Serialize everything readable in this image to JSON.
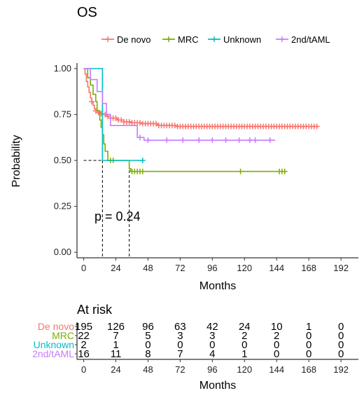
{
  "chart_data": [
    {
      "type": "line",
      "title": "OS",
      "xlabel": "Months",
      "ylabel": "Probability",
      "xlim": [
        -5,
        205
      ],
      "ylim": [
        -0.03,
        1.03
      ],
      "x_ticks": [
        0,
        24,
        48,
        72,
        96,
        120,
        144,
        168,
        192
      ],
      "y_ticks": [
        0.0,
        0.25,
        0.5,
        0.75,
        1.0
      ],
      "y_tick_labels": [
        "0.00",
        "0.25",
        "0.50",
        "0.75",
        "1.00"
      ],
      "legend_position": "top",
      "annotation": "p = 0.24",
      "median_lines": [
        {
          "x": 14,
          "y": 0.5
        },
        {
          "x": 34,
          "y": 0.5
        }
      ],
      "series": [
        {
          "name": "De novo",
          "color": "#F8766D",
          "steps": [
            [
              0,
              1.0
            ],
            [
              1,
              0.97
            ],
            [
              2,
              0.93
            ],
            [
              3,
              0.9
            ],
            [
              4,
              0.87
            ],
            [
              5,
              0.84
            ],
            [
              6,
              0.82
            ],
            [
              7,
              0.8
            ],
            [
              8,
              0.78
            ],
            [
              9,
              0.77
            ],
            [
              10,
              0.76
            ],
            [
              12,
              0.755
            ],
            [
              14,
              0.75
            ],
            [
              17,
              0.74
            ],
            [
              20,
              0.73
            ],
            [
              25,
              0.72
            ],
            [
              30,
              0.71
            ],
            [
              36,
              0.705
            ],
            [
              44,
              0.7
            ],
            [
              55,
              0.69
            ],
            [
              70,
              0.685
            ],
            [
              175,
              0.685
            ]
          ],
          "censor_x": [
            6,
            9,
            11,
            13,
            16,
            18,
            20,
            22,
            24,
            26,
            28,
            30,
            32,
            34,
            36,
            38,
            40,
            42,
            44,
            46,
            48,
            50,
            52,
            54,
            56,
            58,
            60,
            62,
            64,
            66,
            68,
            70,
            72,
            74,
            76,
            78,
            80,
            82,
            84,
            86,
            88,
            90,
            92,
            94,
            96,
            98,
            100,
            102,
            104,
            106,
            108,
            110,
            112,
            114,
            116,
            118,
            120,
            122,
            124,
            126,
            128,
            130,
            132,
            134,
            136,
            138,
            140,
            142,
            144,
            146,
            148,
            150,
            152,
            154,
            156,
            158,
            160,
            162,
            164,
            166,
            168,
            170,
            172,
            174
          ]
        },
        {
          "name": "MRC",
          "color": "#7CAE00",
          "steps": [
            [
              0,
              1.0
            ],
            [
              3,
              0.95
            ],
            [
              5,
              0.91
            ],
            [
              7,
              0.86
            ],
            [
              9,
              0.82
            ],
            [
              10,
              0.77
            ],
            [
              12,
              0.72
            ],
            [
              13,
              0.68
            ],
            [
              14,
              0.64
            ],
            [
              15,
              0.59
            ],
            [
              16,
              0.55
            ],
            [
              18,
              0.5
            ],
            [
              34,
              0.455
            ],
            [
              35,
              0.44
            ],
            [
              150,
              0.44
            ]
          ],
          "censor_x": [
            20,
            22,
            36,
            38,
            40,
            42,
            44,
            117,
            146,
            148,
            150
          ]
        },
        {
          "name": "Unknown",
          "color": "#00BFC4",
          "steps": [
            [
              0,
              1.0
            ],
            [
              14,
              1.0
            ],
            [
              14,
              0.5
            ],
            [
              44,
              0.5
            ]
          ],
          "censor_x": [
            44
          ]
        },
        {
          "name": "2nd/tAML",
          "color": "#C77CFF",
          "steps": [
            [
              0,
              1.0
            ],
            [
              5,
              1.0
            ],
            [
              5,
              0.94
            ],
            [
              10,
              0.94
            ],
            [
              10,
              0.875
            ],
            [
              14,
              0.875
            ],
            [
              14,
              0.81
            ],
            [
              17,
              0.81
            ],
            [
              17,
              0.75
            ],
            [
              20,
              0.75
            ],
            [
              20,
              0.69
            ],
            [
              40,
              0.69
            ],
            [
              40,
              0.625
            ],
            [
              45,
              0.625
            ],
            [
              45,
              0.61
            ],
            [
              143,
              0.61
            ]
          ],
          "censor_x": [
            42,
            48,
            62,
            74,
            86,
            96,
            106,
            116,
            124,
            128,
            139
          ]
        }
      ]
    },
    {
      "type": "table",
      "title": "At risk",
      "xlabel": "Months",
      "x_ticks": [
        0,
        24,
        48,
        72,
        96,
        120,
        144,
        168,
        192
      ],
      "rows": [
        {
          "name": "De novo",
          "color": "#F8766D",
          "values": [
            "195",
            "126",
            "96",
            "63",
            "42",
            "24",
            "10",
            "1",
            "0"
          ]
        },
        {
          "name": "MRC",
          "color": "#7CAE00",
          "values": [
            "22",
            "7",
            "5",
            "3",
            "3",
            "2",
            "2",
            "0",
            "0"
          ]
        },
        {
          "name": "Unknown",
          "color": "#00BFC4",
          "values": [
            "2",
            "1",
            "0",
            "0",
            "0",
            "0",
            "0",
            "0",
            "0"
          ]
        },
        {
          "name": "2nd/tAML",
          "color": "#C77CFF",
          "values": [
            "16",
            "11",
            "8",
            "7",
            "4",
            "1",
            "0",
            "0",
            "0"
          ]
        }
      ]
    }
  ]
}
